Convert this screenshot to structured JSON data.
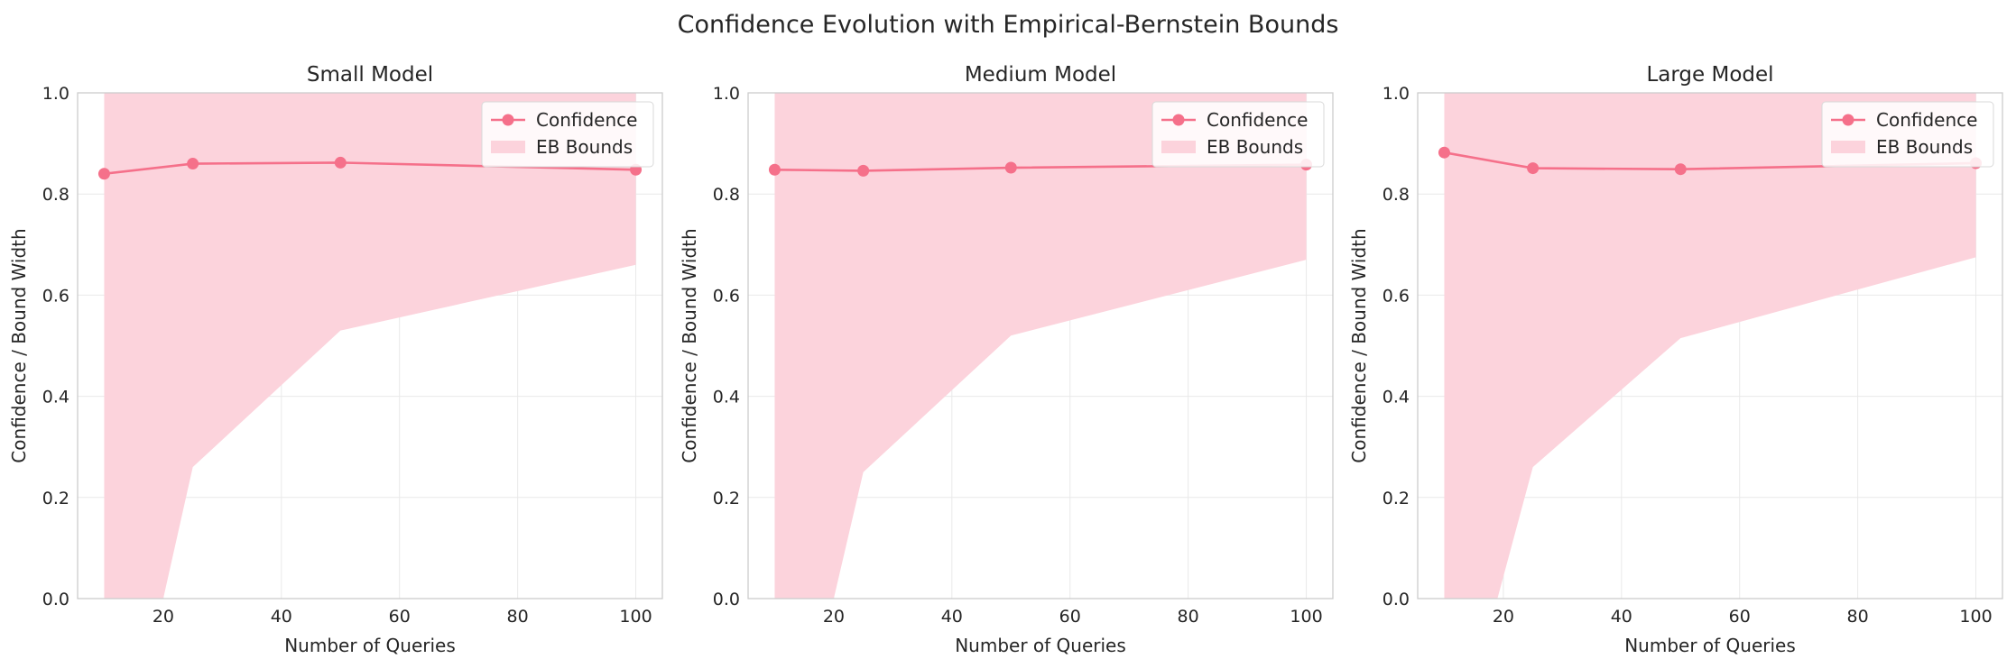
{
  "figure": {
    "title": "Confidence Evolution with Empirical-Bernstein Bounds"
  },
  "colors": {
    "line": "#f5708a",
    "band": "#fcd3dc",
    "grid": "#e9e9e9",
    "spine": "#cccccc",
    "text": "#262626"
  },
  "legend": {
    "confidence_label": "Confidence",
    "bounds_label": "EB Bounds",
    "location": "upper-right"
  },
  "chart_data": [
    {
      "type": "line",
      "title": "Small Model",
      "xlabel": "Number of Queries",
      "ylabel": "Confidence / Bound Width",
      "x": [
        10,
        25,
        50,
        100
      ],
      "series": [
        {
          "name": "Confidence",
          "values": [
            0.84,
            0.86,
            0.862,
            0.848
          ]
        }
      ],
      "band": {
        "name": "EB Bounds",
        "x": [
          10,
          20,
          25,
          50,
          100
        ],
        "lower": [
          0,
          0,
          0.26,
          0.53,
          0.66
        ],
        "upper": [
          1,
          1,
          1,
          1,
          1
        ]
      },
      "xticks": [
        20,
        40,
        60,
        80,
        100
      ],
      "yticks": [
        0.0,
        0.2,
        0.4,
        0.6,
        0.8,
        1.0
      ],
      "ylim": [
        0,
        1
      ],
      "grid": true
    },
    {
      "type": "line",
      "title": "Medium Model",
      "xlabel": "Number of Queries",
      "ylabel": "Confidence / Bound Width",
      "x": [
        10,
        25,
        50,
        100
      ],
      "series": [
        {
          "name": "Confidence",
          "values": [
            0.848,
            0.846,
            0.852,
            0.858
          ]
        }
      ],
      "band": {
        "name": "EB Bounds",
        "x": [
          10,
          20,
          25,
          50,
          100
        ],
        "lower": [
          0,
          0,
          0.25,
          0.52,
          0.67
        ],
        "upper": [
          1,
          1,
          1,
          1,
          1
        ]
      },
      "xticks": [
        20,
        40,
        60,
        80,
        100
      ],
      "yticks": [
        0.0,
        0.2,
        0.4,
        0.6,
        0.8,
        1.0
      ],
      "ylim": [
        0,
        1
      ],
      "grid": true
    },
    {
      "type": "line",
      "title": "Large Model",
      "xlabel": "Number of Queries",
      "ylabel": "Confidence / Bound Width",
      "x": [
        10,
        25,
        50,
        100
      ],
      "series": [
        {
          "name": "Confidence",
          "values": [
            0.882,
            0.851,
            0.849,
            0.861
          ]
        }
      ],
      "band": {
        "name": "EB Bounds",
        "x": [
          10,
          19,
          25,
          50,
          100
        ],
        "lower": [
          0,
          0,
          0.26,
          0.515,
          0.675
        ],
        "upper": [
          1,
          1,
          1,
          1,
          1
        ]
      },
      "xticks": [
        20,
        40,
        60,
        80,
        100
      ],
      "yticks": [
        0.0,
        0.2,
        0.4,
        0.6,
        0.8,
        1.0
      ],
      "ylim": [
        0,
        1
      ],
      "grid": true
    }
  ]
}
